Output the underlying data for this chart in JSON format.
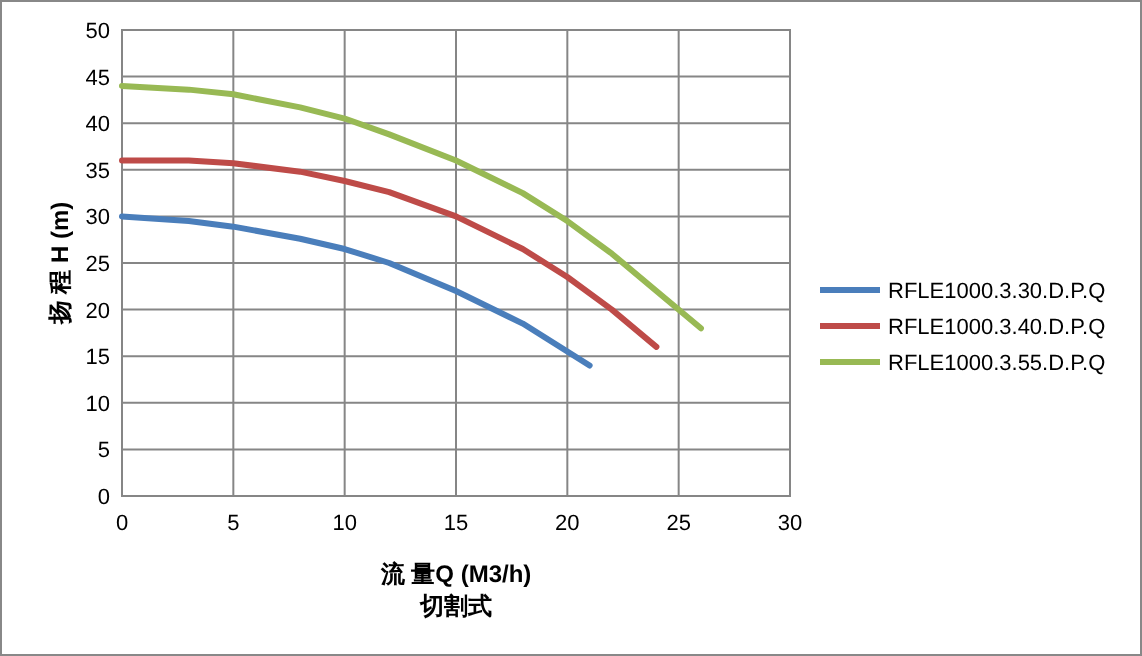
{
  "chart_data": {
    "type": "line",
    "xlabel": "流 量Q (M3/h)\n切割式",
    "ylabel": "扬 程 H (m)",
    "xlim": [
      0,
      30
    ],
    "xticks": [
      0,
      5,
      10,
      15,
      20,
      25,
      30
    ],
    "ylim": [
      0,
      50
    ],
    "yticks": [
      0,
      5,
      10,
      15,
      20,
      25,
      30,
      35,
      40,
      45,
      50
    ],
    "grid": true,
    "legend": "right",
    "marker": "none",
    "line_style": "solid",
    "series": [
      {
        "name": "RFLE1000.3.30.D.P.Q",
        "color": "#4a7ebb",
        "x": [
          0,
          3,
          5,
          8,
          10,
          12,
          15,
          18,
          21
        ],
        "values": [
          30,
          29.5,
          28.9,
          27.6,
          26.5,
          25,
          22,
          18.5,
          14
        ]
      },
      {
        "name": "RFLE1000.3.40.D.P.Q",
        "color": "#be4b48",
        "x": [
          0,
          3,
          5,
          8,
          10,
          12,
          15,
          18,
          20,
          22,
          24
        ],
        "values": [
          36,
          36,
          35.7,
          34.8,
          33.8,
          32.6,
          30,
          26.5,
          23.5,
          20,
          16
        ]
      },
      {
        "name": "RFLE1000.3.55.D.P.Q",
        "color": "#98b954",
        "x": [
          0,
          3,
          5,
          8,
          10,
          12,
          15,
          18,
          20,
          22,
          24,
          26
        ],
        "values": [
          44,
          43.6,
          43.1,
          41.7,
          40.5,
          38.8,
          36,
          32.5,
          29.5,
          26,
          22,
          18
        ]
      }
    ]
  }
}
